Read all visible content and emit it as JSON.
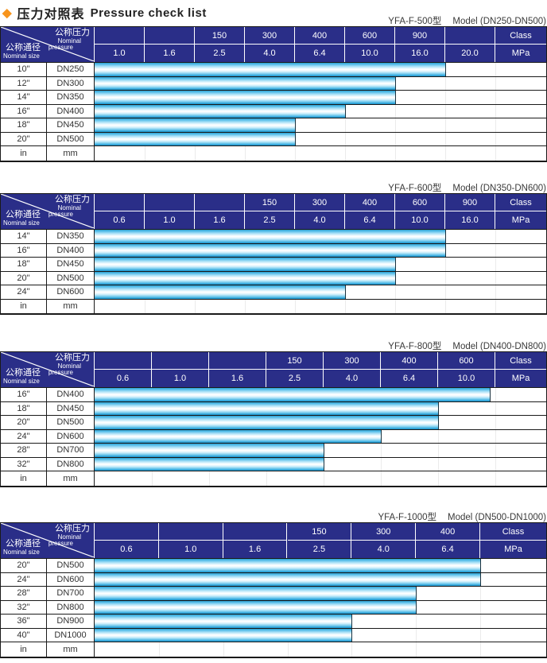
{
  "title": {
    "diamond": "◆",
    "zh": "压力对照表",
    "en": "Pressure check list"
  },
  "corner": {
    "pressure_zh": "公称压力",
    "pressure_en_1": "Nominal",
    "pressure_en_2": "pressure",
    "size_zh": "公称通径",
    "size_en": "Nominal size"
  },
  "units": {
    "class": "Class",
    "mpa": "MPa"
  },
  "footer": {
    "inch": "in",
    "mm": "mm"
  },
  "colors": {
    "header_bg": "#2a2e88",
    "bar_blue": "#29a3dc",
    "title_diamond": "#f7941d",
    "border": "#1a1a1a"
  },
  "tables": [
    {
      "model": "YFA-F-500型",
      "range": "Model (DN250-DN500)",
      "class_values": [
        "",
        "",
        "150",
        "300",
        "400",
        "600",
        "900",
        ""
      ],
      "mpa_values": [
        "1.0",
        "1.6",
        "2.5",
        "4.0",
        "6.4",
        "10.0",
        "16.0",
        "20.0"
      ],
      "rows": [
        {
          "inch": "10\"",
          "dn": "DN250",
          "max_mpa": "16.0",
          "bar_span_cols": 7
        },
        {
          "inch": "12\"",
          "dn": "DN300",
          "max_mpa": "10.0",
          "bar_span_cols": 6
        },
        {
          "inch": "14\"",
          "dn": "DN350",
          "max_mpa": "10.0",
          "bar_span_cols": 6
        },
        {
          "inch": "16\"",
          "dn": "DN400",
          "max_mpa": "6.4",
          "bar_span_cols": 5
        },
        {
          "inch": "18\"",
          "dn": "DN450",
          "max_mpa": "4.0",
          "bar_span_cols": 4
        },
        {
          "inch": "20\"",
          "dn": "DN500",
          "max_mpa": "4.0",
          "bar_span_cols": 4
        }
      ]
    },
    {
      "model": "YFA-F-600型",
      "range": "Model (DN350-DN600)",
      "class_values": [
        "",
        "",
        "",
        "150",
        "300",
        "400",
        "600",
        "900"
      ],
      "mpa_values": [
        "0.6",
        "1.0",
        "1.6",
        "2.5",
        "4.0",
        "6.4",
        "10.0",
        "16.0"
      ],
      "rows": [
        {
          "inch": "14\"",
          "dn": "DN350",
          "max_mpa": "10.0",
          "bar_span_cols": 7
        },
        {
          "inch": "16\"",
          "dn": "DN400",
          "max_mpa": "10.0",
          "bar_span_cols": 7
        },
        {
          "inch": "18\"",
          "dn": "DN450",
          "max_mpa": "6.4",
          "bar_span_cols": 6
        },
        {
          "inch": "20\"",
          "dn": "DN500",
          "max_mpa": "6.4",
          "bar_span_cols": 6
        },
        {
          "inch": "24\"",
          "dn": "DN600",
          "max_mpa": "4.0",
          "bar_span_cols": 5
        }
      ]
    },
    {
      "model": "YFA-F-800型",
      "range": "Model (DN400-DN800)",
      "class_values": [
        "",
        "",
        "",
        "150",
        "300",
        "400",
        "600"
      ],
      "mpa_values": [
        "0.6",
        "1.0",
        "1.6",
        "2.5",
        "4.0",
        "6.4",
        "10.0"
      ],
      "rows": [
        {
          "inch": "16\"",
          "dn": "DN400",
          "max_mpa": "10.0",
          "bar_span_cols": 6.9
        },
        {
          "inch": "18\"",
          "dn": "DN450",
          "max_mpa": "6.4",
          "bar_span_cols": 6
        },
        {
          "inch": "20\"",
          "dn": "DN500",
          "max_mpa": "6.4",
          "bar_span_cols": 6
        },
        {
          "inch": "24\"",
          "dn": "DN600",
          "max_mpa": "4.0",
          "bar_span_cols": 5
        },
        {
          "inch": "28\"",
          "dn": "DN700",
          "max_mpa": "2.5",
          "bar_span_cols": 4
        },
        {
          "inch": "32\"",
          "dn": "DN800",
          "max_mpa": "2.5",
          "bar_span_cols": 4
        }
      ]
    },
    {
      "model": "YFA-F-1000型",
      "range": "Model (DN500-DN1000)",
      "class_values": [
        "",
        "",
        "",
        "150",
        "300",
        "400"
      ],
      "mpa_values": [
        "0.6",
        "1.0",
        "1.6",
        "2.5",
        "4.0",
        "6.4"
      ],
      "rows": [
        {
          "inch": "20\"",
          "dn": "DN500",
          "max_mpa": "6.4",
          "bar_span_cols": 6
        },
        {
          "inch": "24\"",
          "dn": "DN600",
          "max_mpa": "6.4",
          "bar_span_cols": 6
        },
        {
          "inch": "28\"",
          "dn": "DN700",
          "max_mpa": "4.0",
          "bar_span_cols": 5
        },
        {
          "inch": "32\"",
          "dn": "DN800",
          "max_mpa": "4.0",
          "bar_span_cols": 5
        },
        {
          "inch": "36\"",
          "dn": "DN900",
          "max_mpa": "2.5",
          "bar_span_cols": 4
        },
        {
          "inch": "40\"",
          "dn": "DN1000",
          "max_mpa": "2.5",
          "bar_span_cols": 4
        }
      ]
    }
  ]
}
